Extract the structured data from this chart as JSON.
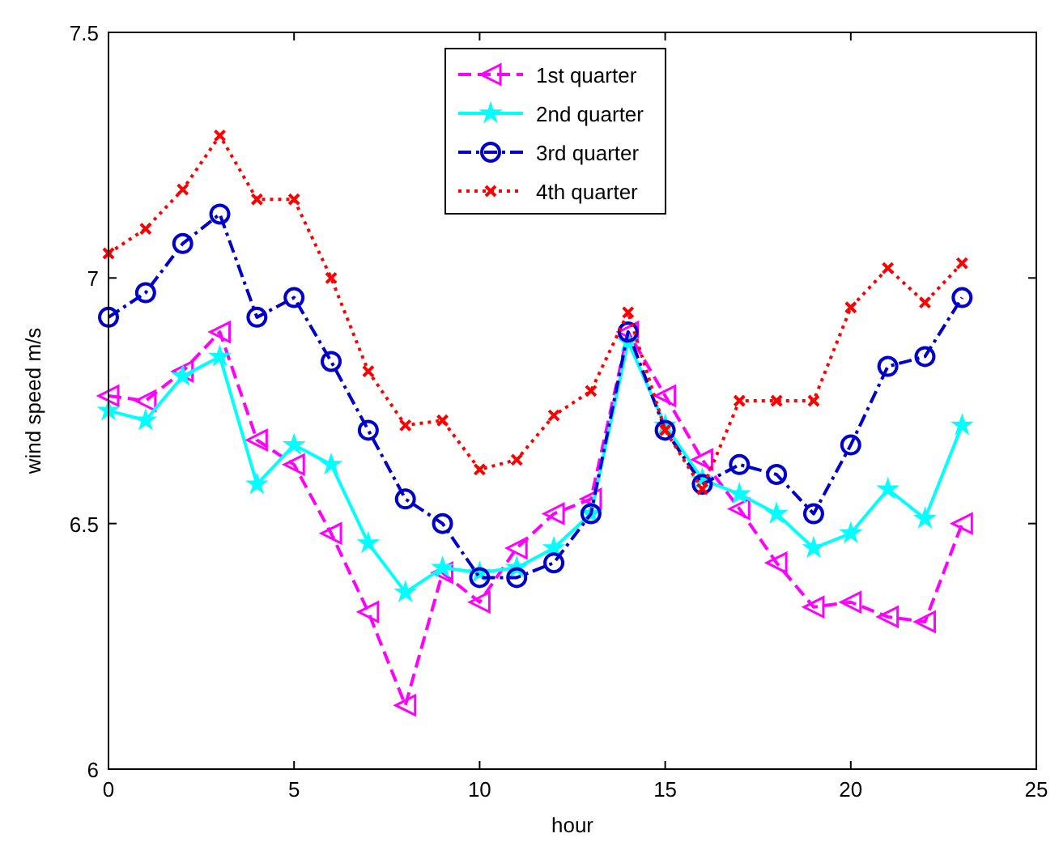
{
  "chart_data": {
    "type": "line",
    "xlabel": "hour",
    "ylabel": "wind speed m/s",
    "x": [
      0,
      1,
      2,
      3,
      4,
      5,
      6,
      7,
      8,
      9,
      10,
      11,
      12,
      13,
      14,
      15,
      16,
      17,
      18,
      19,
      20,
      21,
      22,
      23
    ],
    "xlim": [
      0,
      25
    ],
    "xticks": [
      0,
      5,
      10,
      15,
      20,
      25
    ],
    "ylim": [
      6,
      7.5
    ],
    "yticks": [
      6,
      6.5,
      7,
      7.5
    ],
    "grid": false,
    "legend": "top",
    "series": [
      {
        "name": "1st quarter",
        "color": "#ff00ff",
        "marker": "triangle",
        "line_style": "dashed",
        "values": [
          6.76,
          6.75,
          6.81,
          6.89,
          6.67,
          6.62,
          6.48,
          6.32,
          6.13,
          6.4,
          6.34,
          6.45,
          6.52,
          6.55,
          6.89,
          6.76,
          6.63,
          6.53,
          6.42,
          6.33,
          6.34,
          6.31,
          6.3,
          6.5
        ]
      },
      {
        "name": "2nd quarter",
        "color": "#00ffff",
        "marker": "star",
        "line_style": "solid",
        "values": [
          6.73,
          6.71,
          6.8,
          6.84,
          6.58,
          6.66,
          6.62,
          6.46,
          6.36,
          6.41,
          6.4,
          6.41,
          6.45,
          6.52,
          6.87,
          6.7,
          6.59,
          6.56,
          6.52,
          6.45,
          6.48,
          6.57,
          6.51,
          6.7
        ]
      },
      {
        "name": "3rd quarter",
        "color": "#0000cc",
        "marker": "circle",
        "line_style": "dashdot",
        "values": [
          6.92,
          6.97,
          7.07,
          7.13,
          6.92,
          6.96,
          6.83,
          6.69,
          6.55,
          6.5,
          6.39,
          6.39,
          6.42,
          6.52,
          6.89,
          6.69,
          6.58,
          6.62,
          6.6,
          6.52,
          6.66,
          6.82,
          6.84,
          6.96
        ]
      },
      {
        "name": "4th quarter",
        "color": "#ff0000",
        "marker": "cross",
        "line_style": "dotted",
        "values": [
          7.05,
          7.1,
          7.18,
          7.29,
          7.16,
          7.16,
          7.0,
          6.81,
          6.7,
          6.71,
          6.61,
          6.63,
          6.72,
          6.77,
          6.93,
          6.69,
          6.57,
          6.75,
          6.75,
          6.75,
          6.94,
          7.02,
          6.95,
          7.03
        ]
      }
    ]
  }
}
